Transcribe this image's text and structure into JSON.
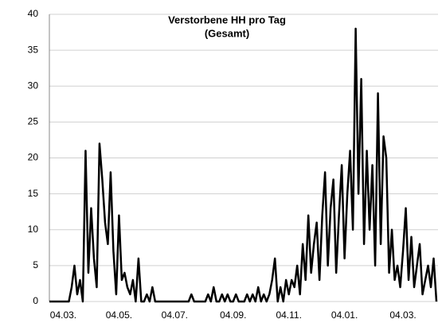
{
  "chart_data": {
    "type": "line",
    "title": [
      "Verstorbene HH pro Tag",
      "(Gesamt)"
    ],
    "categories": [
      null,
      null,
      null,
      null,
      null,
      "04.03.",
      null,
      null,
      null,
      null,
      null,
      null,
      null,
      null,
      null,
      null,
      null,
      null,
      null,
      null,
      null,
      null,
      null,
      null,
      null,
      "04.05.",
      null,
      null,
      null,
      null,
      null,
      null,
      null,
      null,
      null,
      null,
      null,
      null,
      null,
      null,
      null,
      null,
      null,
      null,
      null,
      "04.07.",
      null,
      null,
      null,
      null,
      null,
      null,
      null,
      null,
      null,
      null,
      null,
      null,
      null,
      null,
      null,
      null,
      null,
      null,
      null,
      null,
      "04.09.",
      null,
      null,
      null,
      null,
      null,
      null,
      null,
      null,
      null,
      null,
      null,
      null,
      null,
      null,
      null,
      null,
      null,
      null,
      null,
      "04.11.",
      null,
      null,
      null,
      null,
      null,
      null,
      null,
      null,
      null,
      null,
      null,
      null,
      null,
      null,
      null,
      null,
      null,
      null,
      null,
      "04.01.",
      null,
      null,
      null,
      null,
      null,
      null,
      null,
      null,
      null,
      null,
      null,
      null,
      null,
      null,
      null,
      null,
      null,
      null,
      null,
      null,
      "04.03.",
      null,
      null,
      null,
      null,
      null,
      null,
      null,
      null,
      null,
      null,
      null,
      null
    ],
    "series": [
      {
        "color": "#000000",
        "values": [
          0,
          0,
          0,
          0,
          0,
          0,
          0,
          0,
          2,
          5,
          1,
          3,
          0,
          21,
          4,
          13,
          6,
          2,
          22,
          17,
          11,
          8,
          18,
          7,
          1,
          12,
          3,
          4,
          2,
          1,
          3,
          0,
          6,
          0,
          0,
          1,
          0,
          2,
          0,
          0,
          0,
          0,
          0,
          0,
          0,
          0,
          0,
          0,
          0,
          0,
          0,
          1,
          0,
          0,
          0,
          0,
          0,
          1,
          0,
          2,
          0,
          0,
          1,
          0,
          1,
          0,
          0,
          1,
          0,
          0,
          0,
          1,
          0,
          1,
          0,
          2,
          0,
          1,
          0,
          1,
          3,
          6,
          0,
          2,
          0,
          3,
          1,
          3,
          2,
          5,
          1,
          8,
          3,
          12,
          4,
          8,
          11,
          3,
          12,
          18,
          5,
          13,
          17,
          4,
          12,
          19,
          6,
          15,
          21,
          10,
          38,
          15,
          31,
          8,
          21,
          10,
          19,
          5,
          29,
          8,
          23,
          20,
          4,
          10,
          3,
          5,
          2,
          7,
          13,
          3,
          9,
          2,
          5,
          8,
          1,
          3,
          5,
          2,
          6,
          0
        ]
      }
    ],
    "ylim": [
      0,
      40
    ],
    "yticks": [
      0,
      5,
      10,
      15,
      20,
      25,
      30,
      35,
      40
    ],
    "grid": true
  }
}
